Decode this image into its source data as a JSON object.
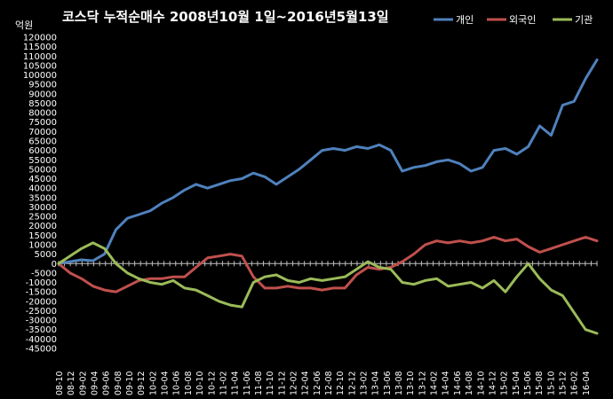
{
  "chart_data": {
    "type": "line",
    "title": "코스닥  누적순매수 2008년10월 1일~2016년5월13일",
    "unit_label": "억원",
    "ylim": [
      -45000,
      120000
    ],
    "ytick_step": 5000,
    "xtick_labels": [
      "08-10",
      "08-12",
      "09-02",
      "09-04",
      "09-06",
      "09-08",
      "09-10",
      "09-12",
      "10-02",
      "10-04",
      "10-06",
      "10-08",
      "10-10",
      "10-12",
      "11-02",
      "11-04",
      "11-06",
      "11-08",
      "11-10",
      "11-12",
      "12-02",
      "12-04",
      "12-06",
      "12-08",
      "12-10",
      "12-12",
      "13-02",
      "13-04",
      "13-06",
      "13-08",
      "13-10",
      "13-12",
      "14-02",
      "14-04",
      "14-06",
      "14-08",
      "14-10",
      "14-12",
      "15-02",
      "15-04",
      "15-06",
      "15-08",
      "15-10",
      "15-12",
      "16-02",
      "16-04"
    ],
    "grid": false,
    "legend_position": "top-right",
    "series": [
      {
        "name": "개인",
        "color": "#4F81BD",
        "values": [
          0,
          1000,
          2000,
          1500,
          5000,
          18000,
          24000,
          26000,
          28000,
          32000,
          35000,
          39000,
          42000,
          40000,
          42000,
          44000,
          45000,
          48000,
          46000,
          42000,
          46000,
          50000,
          55000,
          60000,
          61000,
          60000,
          62000,
          61000,
          63000,
          60000,
          49000,
          51000,
          52000,
          54000,
          55000,
          53000,
          49000,
          51000,
          60000,
          61000,
          58000,
          62000,
          73000,
          68000,
          84000,
          86000,
          98000,
          108000
        ]
      },
      {
        "name": "외국인",
        "color": "#C0504D",
        "values": [
          0,
          -5000,
          -8000,
          -12000,
          -14000,
          -15000,
          -12000,
          -9000,
          -8000,
          -8000,
          -7000,
          -7000,
          -2000,
          3000,
          4000,
          5000,
          4000,
          -7000,
          -13000,
          -13000,
          -12000,
          -13000,
          -13000,
          -14000,
          -13000,
          -13000,
          -6000,
          -2000,
          -3000,
          -2000,
          1000,
          5000,
          10000,
          12000,
          11000,
          12000,
          11000,
          12000,
          14000,
          12000,
          13000,
          9000,
          6000,
          8000,
          10000,
          12000,
          14000,
          12000
        ]
      },
      {
        "name": "기관",
        "color": "#9BBB59",
        "values": [
          0,
          4000,
          8000,
          11000,
          8000,
          0,
          -5000,
          -8000,
          -10000,
          -11000,
          -9000,
          -13000,
          -14000,
          -17000,
          -20000,
          -22000,
          -23000,
          -10000,
          -7000,
          -6000,
          -9000,
          -10000,
          -8000,
          -9000,
          -8000,
          -7000,
          -3000,
          1000,
          -2000,
          -3000,
          -10000,
          -11000,
          -9000,
          -8000,
          -12000,
          -11000,
          -10000,
          -13000,
          -9000,
          -15000,
          -7000,
          0,
          -8000,
          -14000,
          -17000,
          -26000,
          -35000,
          -37000
        ]
      }
    ]
  }
}
